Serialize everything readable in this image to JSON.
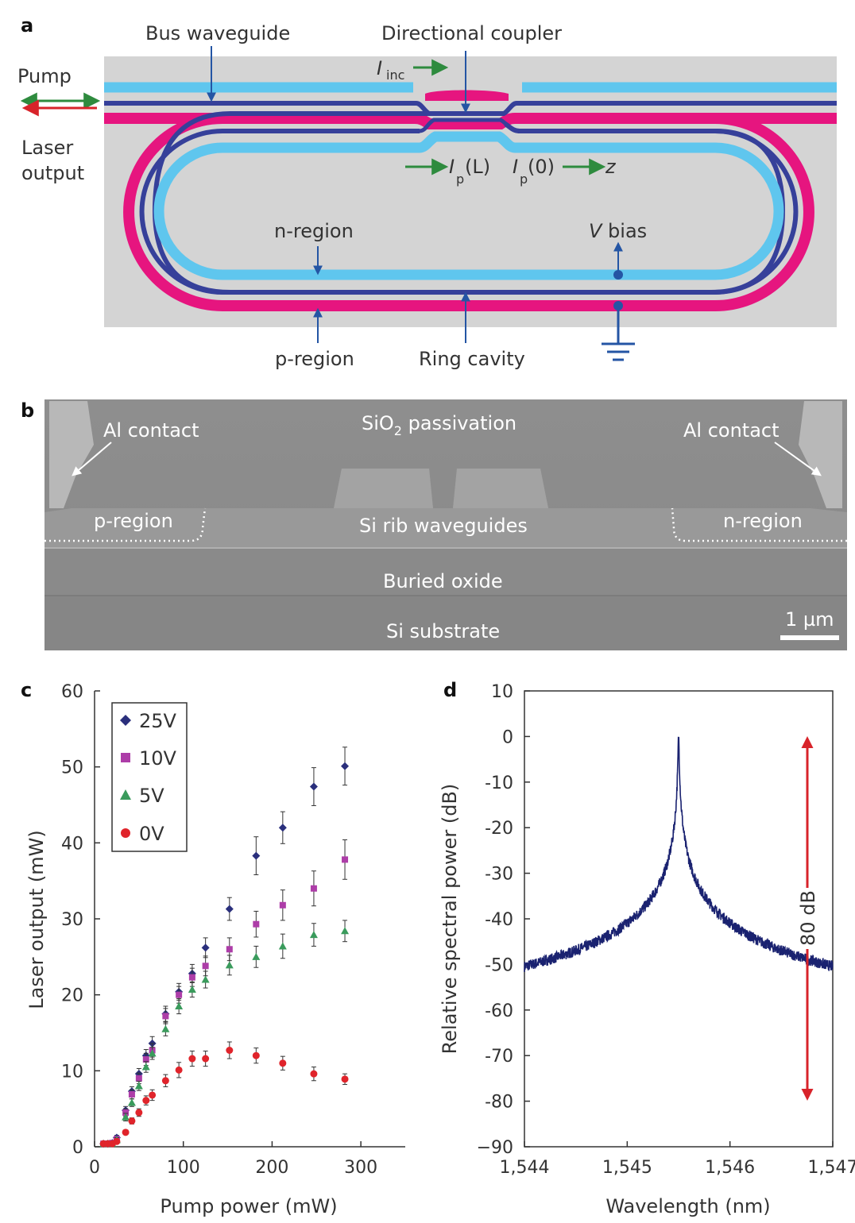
{
  "panel_a": {
    "letter": "a",
    "labels": {
      "bus_waveguide": "Bus waveguide",
      "directional_coupler": "Directional coupler",
      "pump": "Pump",
      "laser_output_1": "Laser",
      "laser_output_2": "output",
      "i_inc": "I",
      "i_inc_sub": "inc",
      "ip_l": "I",
      "ip_l_sub": "p",
      "ip_l_arg": "(L)",
      "ip_0": "I",
      "ip_0_sub": "p",
      "ip_0_arg": "(0)",
      "z": "z",
      "n_region": "n-region",
      "v_bias_v": "V",
      "v_bias_text": " bias",
      "p_region": "p-region",
      "ring_cavity": "Ring cavity"
    },
    "colors": {
      "background": "#d4d4d4",
      "light_blue": "#5fc6ee",
      "dark_blue": "#36409a",
      "magenta": "#e6157f",
      "green": "#2e8b3e",
      "red": "#d8232a",
      "arrow_blue": "#2455a4"
    }
  },
  "panel_b": {
    "letter": "b",
    "labels": {
      "al_contact_left": "Al contact",
      "al_contact_right": "Al contact",
      "sio2_pre": "SiO",
      "sio2_sub": "2",
      "sio2_post": " passivation",
      "p_region": "p-region",
      "n_region": "n-region",
      "si_rib": "Si rib waveguides",
      "buried_oxide": "Buried oxide",
      "si_substrate": "Si substrate",
      "scale": "1 µm"
    }
  },
  "panel_c": {
    "letter": "c",
    "chart_data": {
      "type": "scatter",
      "xlabel": "Pump power (mW)",
      "ylabel": "Laser output (mW)",
      "xlim": [
        0,
        350
      ],
      "ylim": [
        0,
        60
      ],
      "xticks": [
        0,
        100,
        200,
        300
      ],
      "yticks": [
        0,
        10,
        20,
        30,
        40,
        50,
        60
      ],
      "legend_position": "top-left",
      "series": [
        {
          "name": "25V",
          "marker": "diamond",
          "color": "#2a2f7c",
          "x": [
            10,
            15,
            20,
            25,
            35,
            42,
            50,
            58,
            65,
            80,
            95,
            110,
            125,
            152,
            182,
            212,
            247,
            282
          ],
          "y": [
            0.4,
            0.4,
            0.5,
            1.2,
            4.8,
            7.3,
            9.6,
            12.0,
            13.6,
            17.5,
            20.4,
            22.8,
            26.2,
            31.3,
            38.3,
            42.0,
            47.4,
            50.1
          ],
          "err": [
            0.3,
            0.3,
            0.3,
            0.3,
            0.5,
            0.6,
            0.7,
            0.8,
            0.9,
            1.0,
            1.1,
            1.2,
            1.3,
            1.5,
            2.5,
            2.1,
            2.5,
            2.5
          ]
        },
        {
          "name": "10V",
          "marker": "square",
          "color": "#ad3da8",
          "x": [
            10,
            15,
            20,
            25,
            35,
            42,
            50,
            58,
            65,
            80,
            95,
            110,
            125,
            152,
            182,
            212,
            247,
            282
          ],
          "y": [
            0.4,
            0.4,
            0.5,
            1.0,
            4.5,
            6.9,
            9.0,
            11.5,
            12.7,
            17.2,
            20.0,
            22.3,
            23.8,
            26.0,
            29.3,
            31.8,
            34.0,
            37.8
          ],
          "err": [
            0.3,
            0.3,
            0.3,
            0.3,
            0.5,
            0.6,
            0.7,
            0.8,
            0.9,
            1.0,
            1.1,
            1.2,
            1.3,
            1.5,
            1.7,
            2.0,
            2.3,
            2.6
          ]
        },
        {
          "name": "5V",
          "marker": "triangle",
          "color": "#3a9b5c",
          "x": [
            10,
            15,
            20,
            25,
            35,
            42,
            50,
            58,
            65,
            80,
            95,
            110,
            125,
            152,
            182,
            212,
            247,
            282
          ],
          "y": [
            0.4,
            0.4,
            0.4,
            0.9,
            3.9,
            5.8,
            8.0,
            10.5,
            12.3,
            15.5,
            18.5,
            20.7,
            22.0,
            23.9,
            25.0,
            26.4,
            27.9,
            28.4
          ],
          "err": [
            0.3,
            0.3,
            0.3,
            0.3,
            0.5,
            0.5,
            0.6,
            0.7,
            0.8,
            0.9,
            1.0,
            1.0,
            1.1,
            1.3,
            1.4,
            1.6,
            1.5,
            1.4
          ]
        },
        {
          "name": "0V",
          "marker": "circle",
          "color": "#e0242b",
          "x": [
            10,
            15,
            20,
            25,
            35,
            42,
            50,
            58,
            65,
            80,
            95,
            110,
            125,
            152,
            182,
            212,
            247,
            282
          ],
          "y": [
            0.4,
            0.4,
            0.4,
            0.7,
            1.9,
            3.4,
            4.5,
            6.1,
            6.8,
            8.7,
            10.1,
            11.6,
            11.6,
            12.7,
            12.0,
            11.0,
            9.6,
            8.9
          ],
          "err": [
            0.2,
            0.2,
            0.2,
            0.2,
            0.3,
            0.4,
            0.5,
            0.6,
            0.7,
            0.8,
            1.0,
            1.0,
            1.0,
            1.1,
            1.0,
            0.9,
            0.9,
            0.7
          ]
        }
      ]
    }
  },
  "panel_d": {
    "letter": "d",
    "annotation": "80 dB",
    "chart_data": {
      "type": "line",
      "xlabel": "Wavelength (nm)",
      "ylabel": "Relative spectral power (dB)",
      "xlim": [
        1544,
        1547
      ],
      "ylim": [
        -90,
        10
      ],
      "xticks": [
        1544,
        1545,
        1546,
        1547
      ],
      "xtick_labels": [
        "1,544",
        "1,545",
        "1,546",
        "1,547"
      ],
      "yticks": [
        10,
        0,
        -10,
        -20,
        -30,
        -40,
        -50,
        -60,
        -70,
        -80,
        -90
      ],
      "ytick_labels": [
        "10",
        "0",
        "-10",
        "-20",
        "-30",
        "-40",
        "-50",
        "-60",
        "-70",
        "-80",
        "−90"
      ],
      "series": [
        {
          "name": "",
          "color": "#1a2270",
          "peak_wavelength": 1545.5,
          "peak_db": 0,
          "noise_floor_db": -84
        }
      ],
      "range_arrow": {
        "from_db": 0,
        "to_db": -80,
        "color": "#d8232a"
      }
    }
  }
}
